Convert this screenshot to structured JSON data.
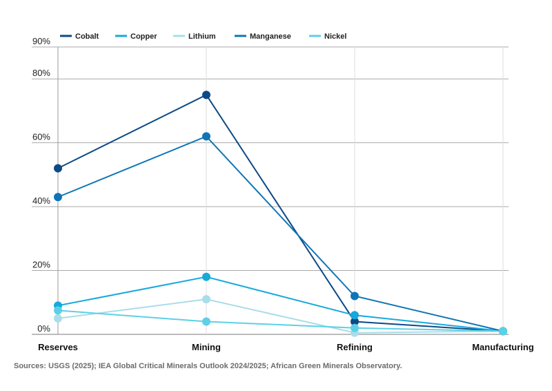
{
  "chart_data": {
    "type": "line",
    "title": "",
    "xlabel": "",
    "ylabel": "",
    "categories": [
      "Reserves",
      "Mining",
      "Refining",
      "Manufacturing"
    ],
    "y_ticks": [
      "0%",
      "20%",
      "40%",
      "60%",
      "80%",
      "90%"
    ],
    "y_tick_values": [
      0,
      20,
      40,
      60,
      80,
      90
    ],
    "ylim": [
      0,
      90
    ],
    "grid": true,
    "legend_position": "top-left",
    "series": [
      {
        "name": "Cobalt",
        "color": "#0d4a85",
        "values": [
          52,
          75,
          4,
          1
        ]
      },
      {
        "name": "Copper",
        "color": "#17a9dc",
        "values": [
          9,
          18,
          6,
          1
        ]
      },
      {
        "name": "Lithium",
        "color": "#a9dde9",
        "values": [
          5,
          11,
          0.5,
          1
        ]
      },
      {
        "name": "Manganese",
        "color": "#0f75b5",
        "values": [
          43,
          62,
          12,
          1
        ]
      },
      {
        "name": "Nickel",
        "color": "#5cd0e6",
        "values": [
          7.5,
          4,
          2,
          1
        ]
      }
    ]
  },
  "source_note": "Sources: USGS (2025); IEA Global Critical Minerals Outlook  2024/2025; African Green Minerals Observatory."
}
